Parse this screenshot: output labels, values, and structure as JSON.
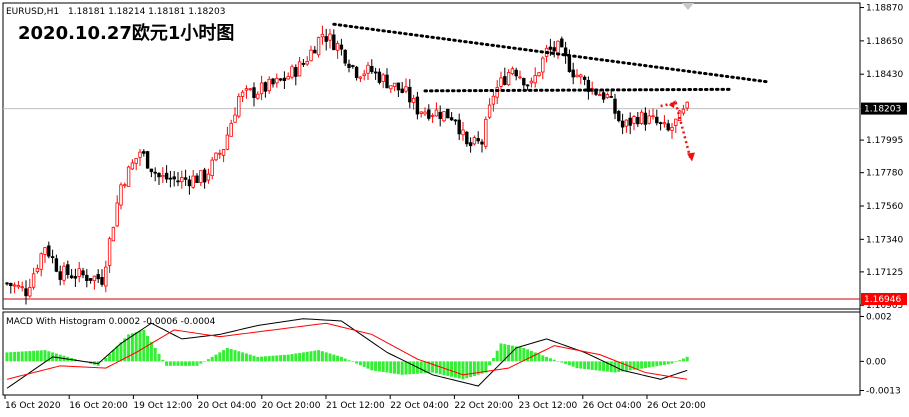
{
  "header": {
    "symbol": "EURUSD,H1",
    "ohlc": "1.18181 1.18214 1.18181 1.18203",
    "overlay_title": "2020.10.27欧元1小时图"
  },
  "price_panel": {
    "y_ticks": [
      "1.18870",
      "1.18650",
      "1.18430",
      "1.17995",
      "1.17780",
      "1.17560",
      "1.17340",
      "1.17125",
      "1.16905"
    ],
    "current_price": "1.18203",
    "support_price": "1.16946",
    "colors": {
      "up": "#ff0000",
      "down": "#000000",
      "support": "#cc0000",
      "badge": "#ff0000",
      "current_badge": "#000000"
    }
  },
  "macd_panel": {
    "label": "MACD With Histogram 0.0002 -0.0006 -0.0004",
    "y_ticks": [
      "0.002",
      "0.00",
      "-0.0013"
    ],
    "colors": {
      "histogram": "#33ee33",
      "macd": "#000000",
      "signal": "#ff0000"
    }
  },
  "x_axis": {
    "labels": [
      "16 Oct 2020",
      "16 Oct 20:00",
      "19 Oct 12:00",
      "20 Oct 04:00",
      "20 Oct 20:00",
      "21 Oct 12:00",
      "22 Oct 04:00",
      "22 Oct 20:00",
      "23 Oct 12:00",
      "26 Oct 04:00",
      "26 Oct 20:00"
    ]
  },
  "chart_data": {
    "type": "candlestick",
    "title": "2020.10.27欧元1小时图",
    "symbol": "EURUSD,H1",
    "ylim": [
      1.1688,
      1.189
    ],
    "anchor_prices": [
      {
        "x": 0,
        "close": 1.1705
      },
      {
        "x": 5,
        "close": 1.17
      },
      {
        "x": 10,
        "close": 1.173
      },
      {
        "x": 14,
        "close": 1.1712
      },
      {
        "x": 20,
        "close": 1.171
      },
      {
        "x": 25,
        "close": 1.1708
      },
      {
        "x": 30,
        "close": 1.177
      },
      {
        "x": 35,
        "close": 1.1792
      },
      {
        "x": 40,
        "close": 1.1775
      },
      {
        "x": 45,
        "close": 1.1773
      },
      {
        "x": 52,
        "close": 1.1775
      },
      {
        "x": 57,
        "close": 1.1795
      },
      {
        "x": 61,
        "close": 1.1828
      },
      {
        "x": 66,
        "close": 1.1832
      },
      {
        "x": 72,
        "close": 1.1838
      },
      {
        "x": 78,
        "close": 1.185
      },
      {
        "x": 83,
        "close": 1.187
      },
      {
        "x": 87,
        "close": 1.1862
      },
      {
        "x": 92,
        "close": 1.1845
      },
      {
        "x": 96,
        "close": 1.1845
      },
      {
        "x": 100,
        "close": 1.1838
      },
      {
        "x": 105,
        "close": 1.183
      },
      {
        "x": 108,
        "close": 1.182
      },
      {
        "x": 113,
        "close": 1.1818
      },
      {
        "x": 118,
        "close": 1.1815
      },
      {
        "x": 121,
        "close": 1.1795
      },
      {
        "x": 125,
        "close": 1.1798
      },
      {
        "x": 128,
        "close": 1.183
      },
      {
        "x": 133,
        "close": 1.1848
      },
      {
        "x": 138,
        "close": 1.1835
      },
      {
        "x": 142,
        "close": 1.1858
      },
      {
        "x": 145,
        "close": 1.186
      },
      {
        "x": 149,
        "close": 1.1845
      },
      {
        "x": 154,
        "close": 1.1833
      },
      {
        "x": 158,
        "close": 1.1828
      },
      {
        "x": 162,
        "close": 1.1808
      },
      {
        "x": 166,
        "close": 1.1815
      },
      {
        "x": 170,
        "close": 1.1812
      },
      {
        "x": 174,
        "close": 1.1805
      },
      {
        "x": 179,
        "close": 1.182
      }
    ],
    "candle_count": 180,
    "current_price": 1.18203,
    "support_level": 1.16946,
    "trendlines": [
      {
        "name": "upper",
        "from": {
          "x": 86,
          "price": 1.1876
        },
        "to": {
          "x": 200,
          "price": 1.1838
        }
      },
      {
        "name": "neckline",
        "from": {
          "x": 110,
          "price": 1.1832
        },
        "to": {
          "x": 190,
          "price": 1.1833
        }
      }
    ],
    "forecast_arrow": {
      "from": {
        "x": 172,
        "price": 1.1822
      },
      "via": {
        "x": 176,
        "price": 1.1824
      },
      "to": {
        "x": 180,
        "price": 1.1786
      }
    },
    "macd": {
      "ylim": [
        -0.0015,
        0.0022
      ],
      "hist_anchors": [
        {
          "x": 0,
          "v": 0.0004
        },
        {
          "x": 10,
          "v": 0.0005
        },
        {
          "x": 16,
          "v": 0.0002
        },
        {
          "x": 24,
          "v": -0.0002
        },
        {
          "x": 32,
          "v": 0.0012
        },
        {
          "x": 36,
          "v": 0.0014
        },
        {
          "x": 42,
          "v": -0.0002
        },
        {
          "x": 50,
          "v": -0.0002
        },
        {
          "x": 58,
          "v": 0.0006
        },
        {
          "x": 66,
          "v": 0.0002
        },
        {
          "x": 74,
          "v": 0.0003
        },
        {
          "x": 82,
          "v": 0.0005
        },
        {
          "x": 88,
          "v": 0.0002
        },
        {
          "x": 96,
          "v": -0.0004
        },
        {
          "x": 104,
          "v": -0.0006
        },
        {
          "x": 112,
          "v": -0.0005
        },
        {
          "x": 120,
          "v": -0.0008
        },
        {
          "x": 126,
          "v": -0.0005
        },
        {
          "x": 130,
          "v": 0.0008
        },
        {
          "x": 136,
          "v": 0.0006
        },
        {
          "x": 142,
          "v": 0.0002
        },
        {
          "x": 150,
          "v": -0.0003
        },
        {
          "x": 160,
          "v": -0.0005
        },
        {
          "x": 168,
          "v": -0.0003
        },
        {
          "x": 175,
          "v": -0.0001
        },
        {
          "x": 179,
          "v": 0.0002
        }
      ],
      "macd_anchors": [
        {
          "x": 0,
          "v": -0.0012
        },
        {
          "x": 12,
          "v": 0.0002
        },
        {
          "x": 24,
          "v": -0.0001
        },
        {
          "x": 30,
          "v": 0.0008
        },
        {
          "x": 38,
          "v": 0.0017
        },
        {
          "x": 46,
          "v": 0.001
        },
        {
          "x": 56,
          "v": 0.0012
        },
        {
          "x": 66,
          "v": 0.0016
        },
        {
          "x": 78,
          "v": 0.0019
        },
        {
          "x": 88,
          "v": 0.0018
        },
        {
          "x": 100,
          "v": 0.0004
        },
        {
          "x": 112,
          "v": -0.0006
        },
        {
          "x": 124,
          "v": -0.0011
        },
        {
          "x": 134,
          "v": 0.0006
        },
        {
          "x": 142,
          "v": 0.001
        },
        {
          "x": 152,
          "v": 0.0004
        },
        {
          "x": 162,
          "v": -0.0004
        },
        {
          "x": 172,
          "v": -0.0008
        },
        {
          "x": 179,
          "v": -0.0004
        }
      ],
      "signal_anchors": [
        {
          "x": 0,
          "v": -0.0008
        },
        {
          "x": 14,
          "v": -0.0002
        },
        {
          "x": 26,
          "v": -0.0003
        },
        {
          "x": 34,
          "v": 0.0004
        },
        {
          "x": 44,
          "v": 0.0014
        },
        {
          "x": 56,
          "v": 0.0011
        },
        {
          "x": 70,
          "v": 0.0014
        },
        {
          "x": 84,
          "v": 0.0017
        },
        {
          "x": 96,
          "v": 0.0012
        },
        {
          "x": 108,
          "v": 0.0001
        },
        {
          "x": 120,
          "v": -0.0006
        },
        {
          "x": 132,
          "v": -0.0003
        },
        {
          "x": 144,
          "v": 0.0007
        },
        {
          "x": 156,
          "v": 0.0003
        },
        {
          "x": 168,
          "v": -0.0005
        },
        {
          "x": 179,
          "v": -0.0008
        }
      ]
    }
  }
}
